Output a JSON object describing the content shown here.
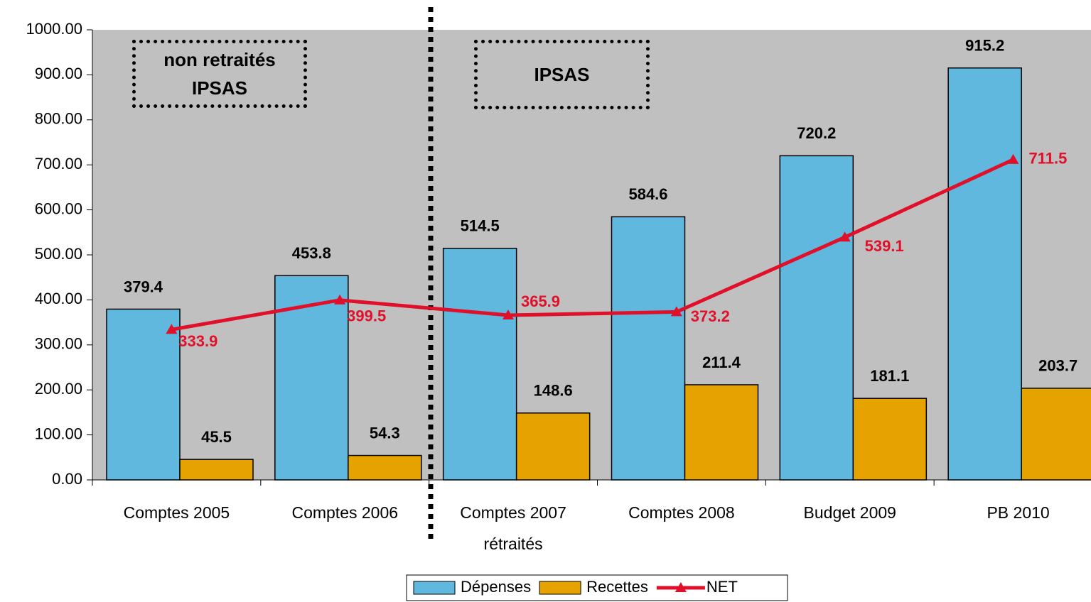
{
  "chart_data": {
    "type": "bar",
    "categories": [
      "Comptes 2005",
      "Comptes 2006",
      "Comptes 2007 rétraités",
      "Comptes 2008",
      "Budget 2009",
      "PB 2010"
    ],
    "series": [
      {
        "name": "Dépenses",
        "color": "#60b8de",
        "type": "bar",
        "values": [
          379.4,
          453.8,
          514.5,
          584.6,
          720.2,
          915.2
        ]
      },
      {
        "name": "Recettes",
        "color": "#e6a300",
        "type": "bar",
        "values": [
          45.5,
          54.3,
          148.6,
          211.4,
          181.1,
          203.7
        ]
      },
      {
        "name": "NET",
        "color": "#e0102a",
        "type": "line",
        "values": [
          333.9,
          399.5,
          365.9,
          373.2,
          539.1,
          711.5
        ]
      }
    ],
    "ylim": [
      0,
      1000
    ],
    "yticks": [
      {
        "value": 0,
        "label": "0.00"
      },
      {
        "value": 100,
        "label": "100.00"
      },
      {
        "value": 200,
        "label": "200.00"
      },
      {
        "value": 300,
        "label": "300.00"
      },
      {
        "value": 400,
        "label": "400.00"
      },
      {
        "value": 500,
        "label": "500.00"
      },
      {
        "value": 600,
        "label": "600.00"
      },
      {
        "value": 700,
        "label": "700.00"
      },
      {
        "value": 800,
        "label": "800.00"
      },
      {
        "value": 900,
        "label": "900.00"
      },
      {
        "value": 1000,
        "label": "1000.00"
      }
    ],
    "annotations": [
      "non retraités IPSAS",
      "IPSAS"
    ],
    "legend": "bottom"
  }
}
